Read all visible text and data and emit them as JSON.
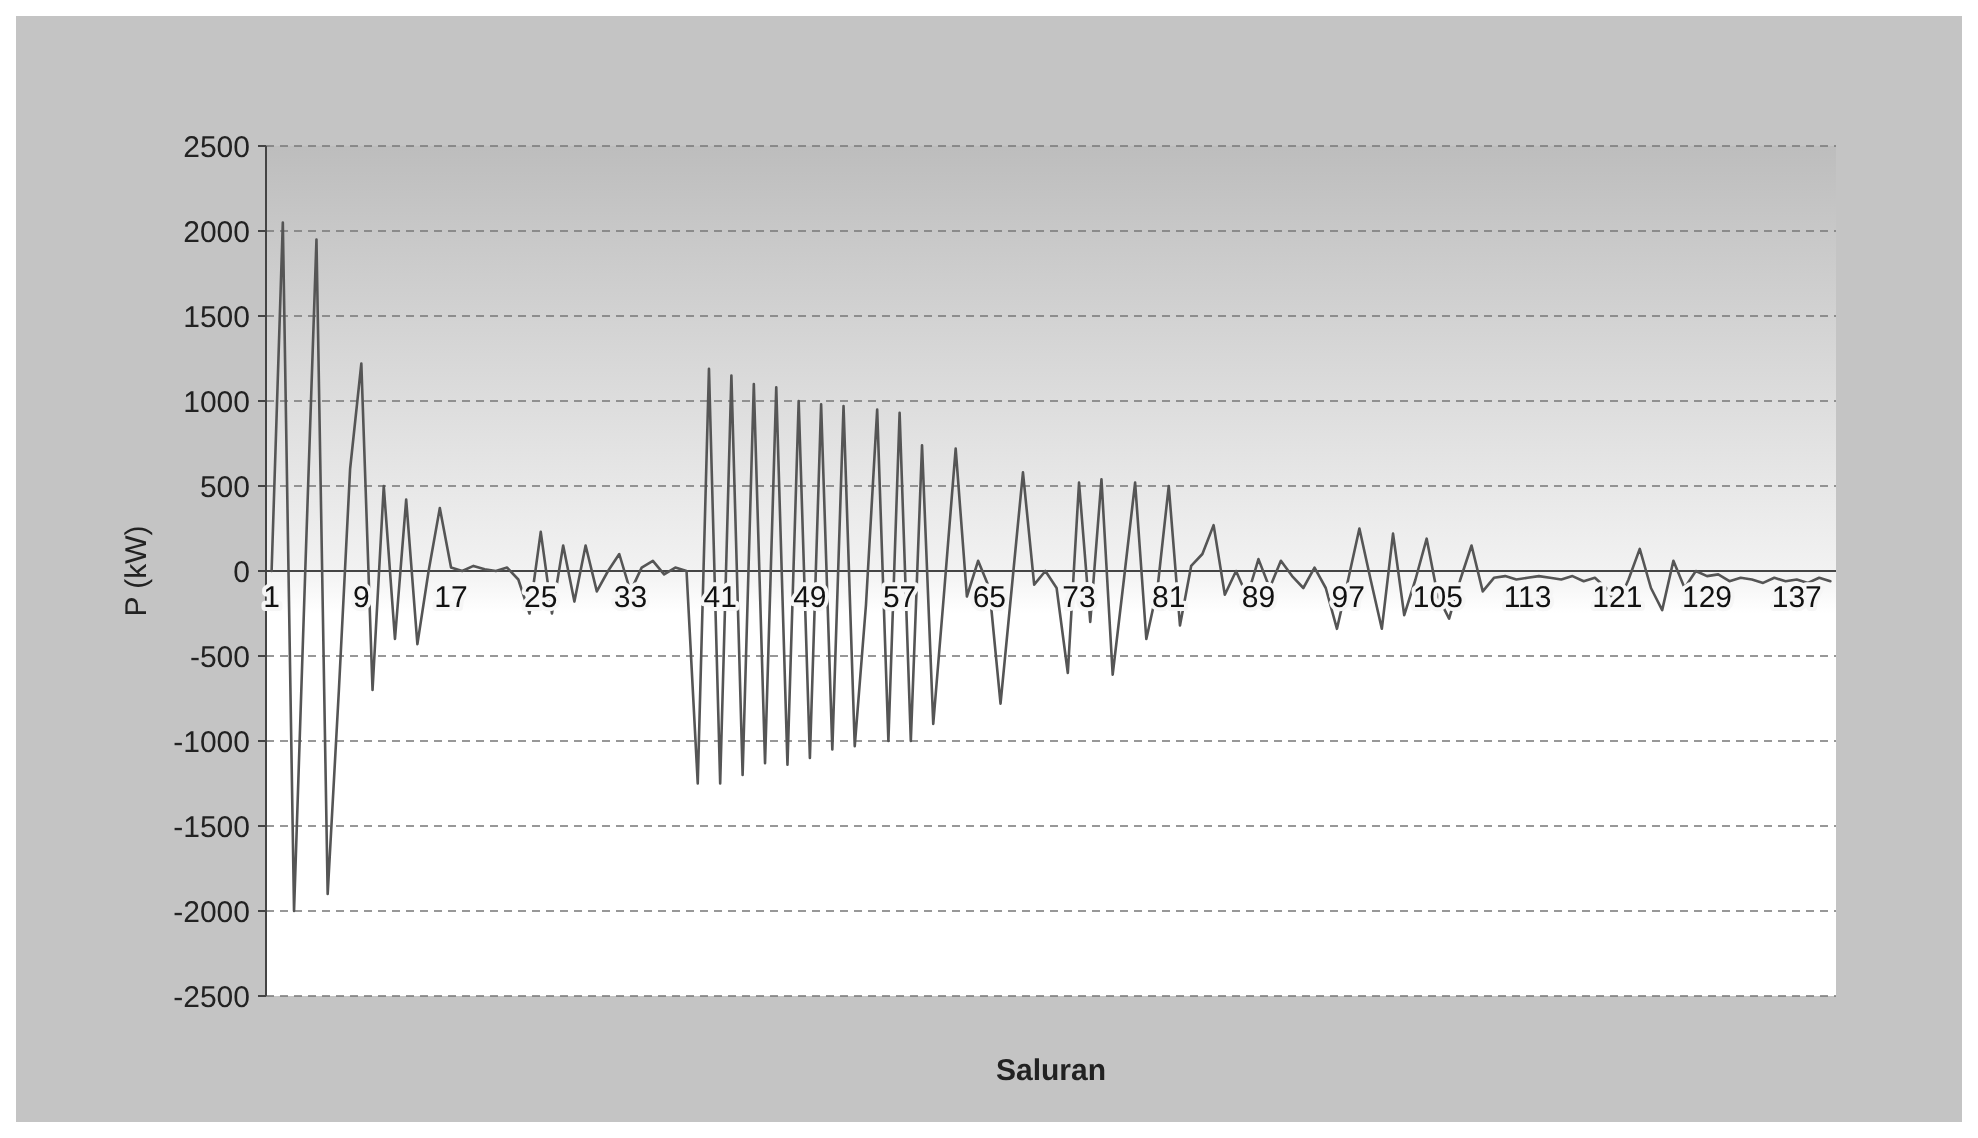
{
  "chart_data": {
    "type": "line",
    "xlabel": "Saluran",
    "ylabel": "P (kW)",
    "categories": [
      "1",
      null,
      null,
      null,
      null,
      null,
      null,
      null,
      "9",
      null,
      null,
      null,
      null,
      null,
      null,
      null,
      "17",
      null,
      null,
      null,
      null,
      null,
      null,
      null,
      "25",
      null,
      null,
      null,
      null,
      null,
      null,
      null,
      "33",
      null,
      null,
      null,
      null,
      null,
      null,
      null,
      "41",
      null,
      null,
      null,
      null,
      null,
      null,
      null,
      "49",
      null,
      null,
      null,
      null,
      null,
      null,
      null,
      "57",
      null,
      null,
      null,
      null,
      null,
      null,
      null,
      "65",
      null,
      null,
      null,
      null,
      null,
      null,
      null,
      "73",
      null,
      null,
      null,
      null,
      null,
      null,
      null,
      "81",
      null,
      null,
      null,
      null,
      null,
      null,
      null,
      "89",
      null,
      null,
      null,
      null,
      null,
      null,
      null,
      "97",
      null,
      null,
      null,
      null,
      null,
      null,
      null,
      "105",
      null,
      null,
      null,
      null,
      null,
      null,
      null,
      "113",
      null,
      null,
      null,
      null,
      null,
      null,
      null,
      "121",
      null,
      null,
      null,
      null,
      null,
      null,
      null,
      "129",
      null,
      null,
      null,
      null,
      null,
      null,
      null,
      "137",
      null,
      null,
      null
    ],
    "series": [
      {
        "color": "#555555",
        "values": [
          0,
          2050,
          -2000,
          0,
          1950,
          -1900,
          -700,
          600,
          1220,
          -700,
          500,
          -400,
          420,
          -430,
          0,
          370,
          20,
          0,
          30,
          10,
          0,
          20,
          -50,
          -250,
          230,
          -250,
          150,
          -180,
          150,
          -120,
          0,
          100,
          -120,
          20,
          60,
          -20,
          20,
          0,
          -1250,
          1190,
          -1250,
          1150,
          -1200,
          1100,
          -1130,
          1080,
          -1140,
          1000,
          -1100,
          980,
          -1050,
          970,
          -1030,
          -200,
          950,
          -1000,
          930,
          -1000,
          740,
          -900,
          -100,
          720,
          -150,
          60,
          -100,
          -780,
          -100,
          580,
          -80,
          0,
          -100,
          -600,
          520,
          -300,
          540,
          -610,
          -50,
          520,
          -400,
          -100,
          500,
          -320,
          30,
          100,
          270,
          -140,
          0,
          -150,
          70,
          -100,
          60,
          -30,
          -100,
          20,
          -100,
          -340,
          -50,
          250,
          -50,
          -340,
          220,
          -260,
          -50,
          190,
          -150,
          -280,
          -50,
          150,
          -120,
          -40,
          -30,
          -50,
          -40,
          -30,
          -40,
          -50,
          -30,
          -60,
          -40,
          -100,
          -200,
          -50,
          130,
          -100,
          -230,
          60,
          -100,
          0,
          -30,
          -20,
          -60,
          -40,
          -50,
          -70,
          -40,
          -60,
          -50,
          -70,
          -40,
          -60
        ]
      }
    ],
    "ylim": [
      -2500,
      2500
    ],
    "yticks": [
      -2500,
      -2000,
      -1500,
      -1000,
      -500,
      0,
      500,
      1000,
      1500,
      2000,
      2500
    ],
    "grid": "y"
  }
}
